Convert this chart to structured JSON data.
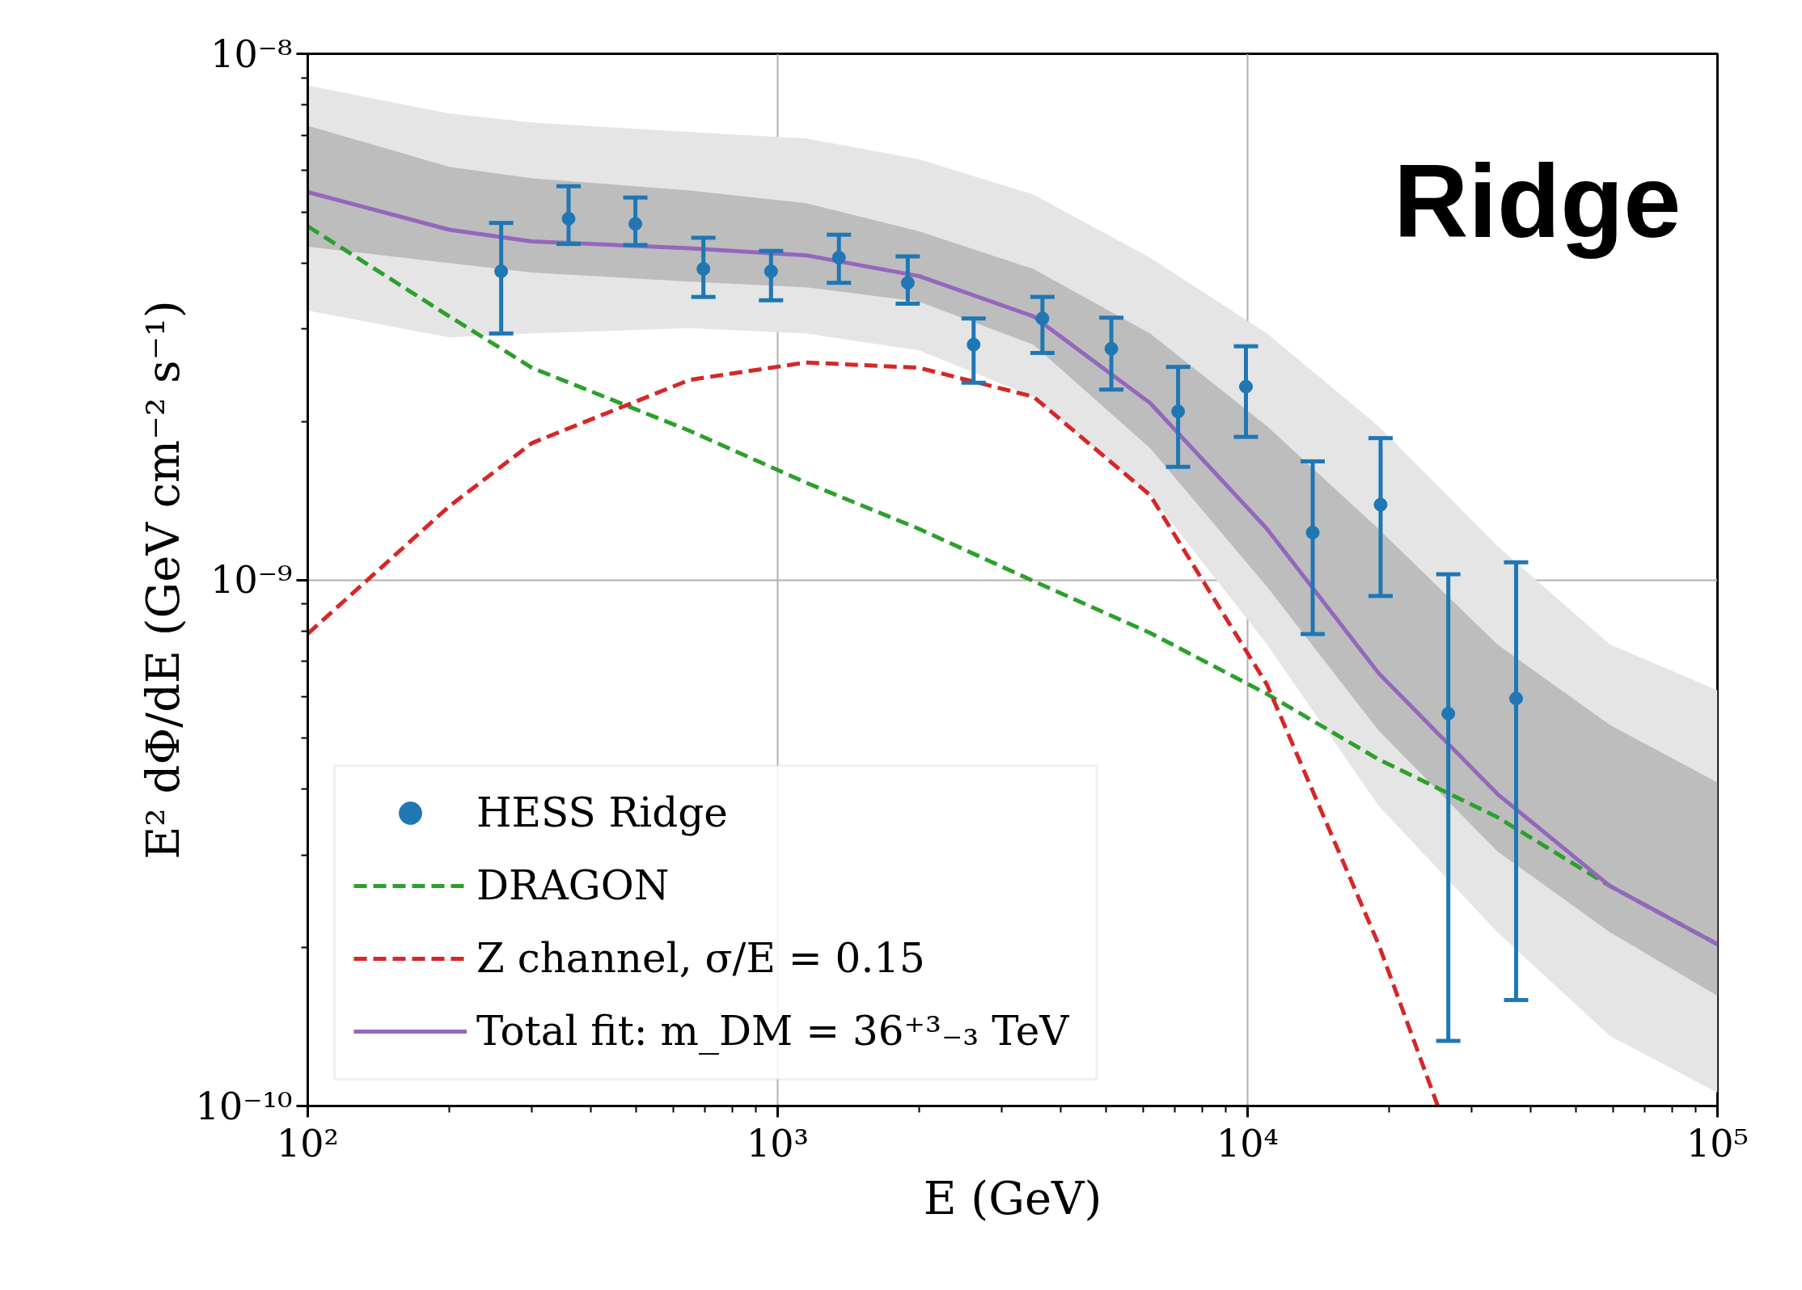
{
  "chart_data": {
    "type": "scatter",
    "title": "Ridge",
    "xlabel": "E (GeV)",
    "ylabel": "E² dΦ/dE (GeV cm⁻² s⁻¹)",
    "log": "xy",
    "xlim": [
      100,
      100000
    ],
    "ylim": [
      1e-10,
      1e-08
    ],
    "xticks": [
      {
        "value": 100,
        "label": "10²"
      },
      {
        "value": 1000,
        "label": "10³"
      },
      {
        "value": 10000,
        "label": "10⁴"
      },
      {
        "value": 100000,
        "label": "10⁵"
      }
    ],
    "yticks": [
      {
        "value": 1e-10,
        "label": "10⁻¹⁰"
      },
      {
        "value": 1e-09,
        "label": "10⁻⁹"
      },
      {
        "value": 1e-08,
        "label": "10⁻⁸"
      }
    ],
    "grid": true,
    "legend": "bottom left",
    "series": [
      {
        "type": "line",
        "color": "#e5e5e5",
        "x": [
          100,
          200,
          300,
          650,
          1150,
          2000,
          3500,
          6200,
          11000,
          19000,
          34000,
          59000,
          100000
        ],
        "values": [
          null,
          null,
          null,
          null,
          null,
          null,
          null,
          null,
          null,
          null,
          null,
          null,
          null
        ],
        "lower": [
          3.25e-09,
          2.89e-09,
          2.94e-09,
          3.01e-09,
          2.94e-09,
          2.73e-09,
          2.23e-09,
          1.45e-09,
          7.54e-10,
          3.72e-10,
          2.14e-10,
          1.36e-10,
          1.06e-10
        ],
        "upper": [
          8.7e-09,
          7.7e-09,
          7.4e-09,
          7.1e-09,
          6.9e-09,
          6.3e-09,
          5.4e-09,
          4.1e-09,
          2.94e-09,
          1.96e-09,
          1.16e-09,
          7.54e-10,
          6.17e-10
        ]
      },
      {
        "type": "line",
        "color": "#bdbdbd",
        "x": [
          100,
          200,
          300,
          650,
          1150,
          2000,
          3500,
          6200,
          11000,
          19000,
          34000,
          59000,
          100000
        ],
        "values": [
          null,
          null,
          null,
          null,
          null,
          null,
          null,
          null,
          null,
          null,
          null,
          null,
          null
        ],
        "lower": [
          4.3e-09,
          4e-09,
          3.84e-09,
          3.69e-09,
          3.6e-09,
          3.38e-09,
          2.8e-09,
          1.78e-09,
          9.7e-10,
          5.17e-10,
          3.05e-10,
          2.14e-10,
          1.62e-10
        ],
        "upper": [
          7.3e-09,
          6.1e-09,
          5.8e-09,
          5.5e-09,
          5.2e-09,
          4.6e-09,
          3.9e-09,
          2.94e-09,
          1.96e-09,
          1.25e-09,
          7.54e-10,
          5.3e-10,
          4.12e-10
        ]
      },
      {
        "name": "HESS Ridge",
        "color": "#1f77b4",
        "marker": "circle",
        "x": [
          258,
          359,
          498,
          695,
          968,
          1350,
          1892,
          2612,
          3660,
          5130,
          7115,
          9920,
          13760,
          19190,
          26740,
          37280
        ],
        "values": [
          3.86e-09,
          4.86e-09,
          4.75e-09,
          3.9e-09,
          3.86e-09,
          4.1e-09,
          3.67e-09,
          2.8e-09,
          3.14e-09,
          2.75e-09,
          2.09e-09,
          2.33e-09,
          1.23e-09,
          1.39e-09,
          5.57e-10,
          5.95e-10
        ],
        "errors": [
          [
            2.94e-09,
            4.77e-09
          ],
          [
            4.35e-09,
            5.6e-09
          ],
          [
            4.33e-09,
            5.33e-09
          ],
          [
            3.45e-09,
            4.47e-09
          ],
          [
            3.4e-09,
            4.22e-09
          ],
          [
            3.67e-09,
            4.53e-09
          ],
          [
            3.35e-09,
            4.12e-09
          ],
          [
            2.37e-09,
            3.14e-09
          ],
          [
            2.7e-09,
            3.45e-09
          ],
          [
            2.3e-09,
            3.15e-09
          ],
          [
            1.64e-09,
            2.54e-09
          ],
          [
            1.87e-09,
            2.78e-09
          ],
          [
            7.89e-10,
            1.68e-09
          ],
          [
            9.32e-10,
            1.86e-09
          ],
          [
            1.33e-10,
            1.025e-09
          ],
          [
            1.59e-10,
            1.08e-09
          ]
        ]
      },
      {
        "type": "line",
        "name": "DRAGON",
        "color": "#2ca02c",
        "line_style": "dashed",
        "x": [
          100,
          200,
          300,
          650,
          1150,
          2000,
          3500,
          6200,
          11000,
          19000,
          34000,
          59000,
          100000
        ],
        "values": [
          4.7e-09,
          3.17e-09,
          2.53e-09,
          1.92e-09,
          1.53e-09,
          1.25e-09,
          9.95e-10,
          7.93e-10,
          6.07e-10,
          4.56e-10,
          3.54e-10,
          2.62e-10,
          2.03e-10
        ]
      },
      {
        "type": "line",
        "name": "Z channel, σ/E = 0.15",
        "color": "#d62728",
        "line_style": "dashed",
        "x": [
          100,
          200,
          300,
          650,
          1150,
          2000,
          3500,
          6200,
          11000,
          19000,
          25400
        ],
        "values": [
          7.9e-10,
          1.38e-09,
          1.82e-09,
          2.4e-09,
          2.59e-09,
          2.53e-09,
          2.23e-09,
          1.45e-09,
          6.32e-10,
          2.03e-10,
          1e-10
        ]
      },
      {
        "type": "line",
        "name": "Total fit: m_DM = 36⁺³₋₃ TeV",
        "color": "#9467bd",
        "line_style": "solid",
        "x": [
          100,
          200,
          300,
          650,
          1150,
          2000,
          3500,
          6200,
          11000,
          19000,
          34000,
          59000,
          100000
        ],
        "values": [
          5.46e-09,
          4.63e-09,
          4.4e-09,
          4.27e-09,
          4.14e-09,
          3.78e-09,
          3.17e-09,
          2.17e-09,
          1.25e-09,
          6.65e-10,
          3.92e-10,
          2.62e-10,
          2.03e-10
        ]
      }
    ]
  }
}
